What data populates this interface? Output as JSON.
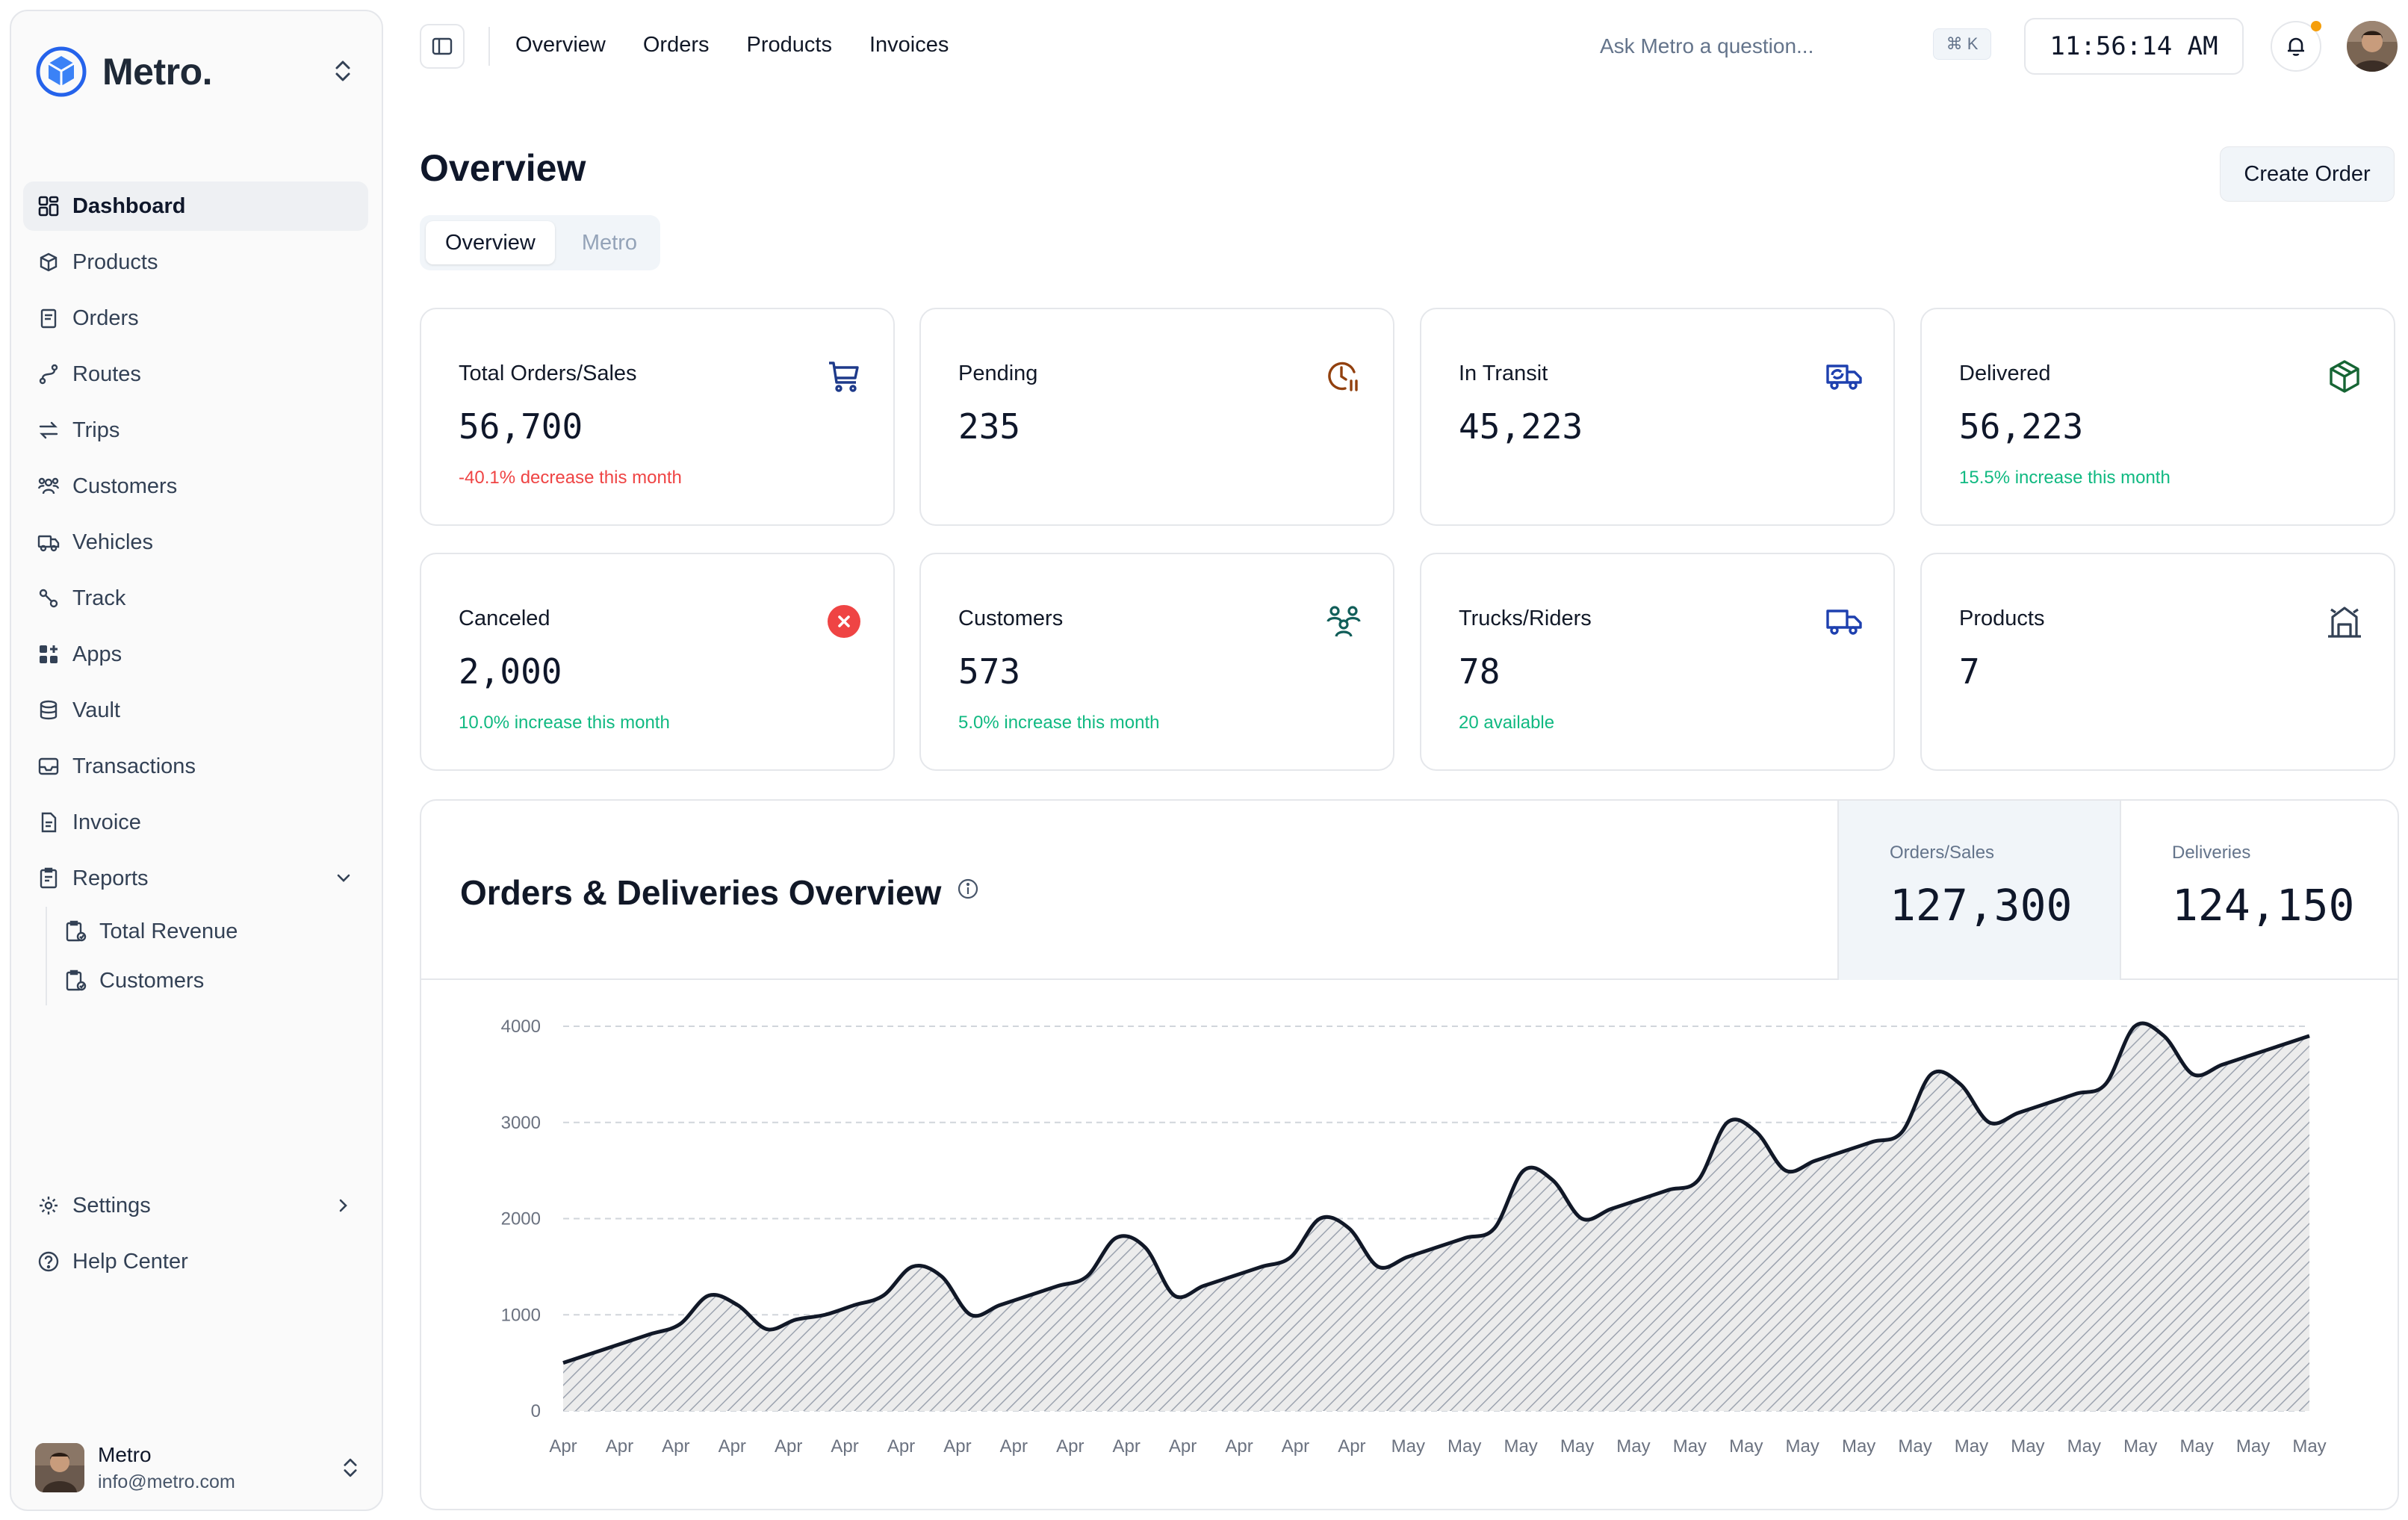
{
  "brand": {
    "name": "Metro."
  },
  "sidebar": {
    "items": [
      {
        "label": "Dashboard",
        "icon": "dashboard-icon",
        "active": true
      },
      {
        "label": "Products",
        "icon": "box-icon"
      },
      {
        "label": "Orders",
        "icon": "clipboard-icon"
      },
      {
        "label": "Routes",
        "icon": "route-icon"
      },
      {
        "label": "Trips",
        "icon": "arrows-icon"
      },
      {
        "label": "Customers",
        "icon": "users-icon"
      },
      {
        "label": "Vehicles",
        "icon": "truck-icon"
      },
      {
        "label": "Track",
        "icon": "track-icon"
      },
      {
        "label": "Apps",
        "icon": "apps-icon"
      },
      {
        "label": "Vault",
        "icon": "database-icon"
      },
      {
        "label": "Transactions",
        "icon": "inbox-icon"
      },
      {
        "label": "Invoice",
        "icon": "file-icon"
      },
      {
        "label": "Reports",
        "icon": "report-icon"
      }
    ],
    "reports_sub": [
      {
        "label": "Total Revenue",
        "icon": "clipboard-check-icon"
      },
      {
        "label": "Customers",
        "icon": "clipboard-check-icon"
      }
    ],
    "bottom": [
      {
        "label": "Settings",
        "icon": "gear-icon"
      },
      {
        "label": "Help Center",
        "icon": "help-icon"
      }
    ],
    "user": {
      "name": "Metro",
      "email": "info@metro.com"
    }
  },
  "topbar": {
    "links": [
      "Overview",
      "Orders",
      "Products",
      "Invoices"
    ],
    "ask_placeholder": "Ask Metro a question...",
    "shortcut": "⌘ K",
    "clock": "11:56:14 AM"
  },
  "page": {
    "title": "Overview",
    "create_label": "Create Order",
    "tabs": [
      "Overview",
      "Metro"
    ]
  },
  "cards": [
    {
      "label": "Total Orders/Sales",
      "value": "56,700",
      "note": "-40.1% decrease this month",
      "tone": "neg",
      "icon": "cart-icon",
      "color": "#1e3a8a"
    },
    {
      "label": "Pending",
      "value": "235",
      "note": "",
      "tone": "",
      "icon": "clock-pause-icon",
      "color": "#92400e"
    },
    {
      "label": "In Transit",
      "value": "45,223",
      "note": "",
      "tone": "",
      "icon": "transit-truck-icon",
      "color": "#1e40af"
    },
    {
      "label": "Delivered",
      "value": "56,223",
      "note": "15.5% increase this month",
      "tone": "pos",
      "icon": "package-icon",
      "color": "#166534"
    },
    {
      "label": "Canceled",
      "value": "2,000",
      "note": "10.0% increase this month",
      "tone": "pos",
      "icon": "cancel-icon",
      "color": "#ef4444"
    },
    {
      "label": "Customers",
      "value": "573",
      "note": "5.0% increase this month",
      "tone": "pos",
      "icon": "group-icon",
      "color": "#115e59"
    },
    {
      "label": "Trucks/Riders",
      "value": "78",
      "note": "20 available",
      "tone": "pos",
      "icon": "truck-icon",
      "color": "#1e40af"
    },
    {
      "label": "Products",
      "value": "7",
      "note": "",
      "tone": "",
      "icon": "warehouse-icon",
      "color": "#334155"
    }
  ],
  "panel": {
    "title": "Orders & Deliveries Overview",
    "metrics": [
      {
        "label": "Orders/Sales",
        "value": "127,300"
      },
      {
        "label": "Deliveries",
        "value": "124,150"
      }
    ]
  },
  "chart_data": {
    "type": "area",
    "series": [
      {
        "values": [
          500,
          600,
          700,
          800,
          900,
          1200,
          1100,
          850,
          950,
          1000,
          1100,
          1200,
          1500,
          1400,
          1000,
          1100,
          1200,
          1300,
          1400,
          1800,
          1700,
          1200,
          1300,
          1400,
          1500,
          1600,
          2000,
          1900,
          1500,
          1600,
          1700,
          1800,
          1900,
          2500,
          2400,
          2000,
          2100,
          2200,
          2300,
          2400,
          3000,
          2900,
          2500,
          2600,
          2700,
          2800,
          2900,
          3500,
          3400,
          3000,
          3100,
          3200,
          3300,
          3400,
          4000,
          3900,
          3500,
          3600,
          3700,
          3800,
          3900
        ]
      }
    ],
    "x_tick_labels": [
      "Apr",
      "Apr",
      "Apr",
      "Apr",
      "Apr",
      "Apr",
      "Apr",
      "Apr",
      "Apr",
      "Apr",
      "Apr",
      "Apr",
      "Apr",
      "Apr",
      "Apr",
      "May",
      "May",
      "May",
      "May",
      "May",
      "May",
      "May",
      "May",
      "May",
      "May",
      "May",
      "May",
      "May",
      "May",
      "May",
      "May",
      "May"
    ],
    "y_ticks": [
      0,
      1000,
      2000,
      3000,
      4000
    ],
    "ylim": [
      0,
      4000
    ],
    "grid": true,
    "fill": "hatched"
  }
}
